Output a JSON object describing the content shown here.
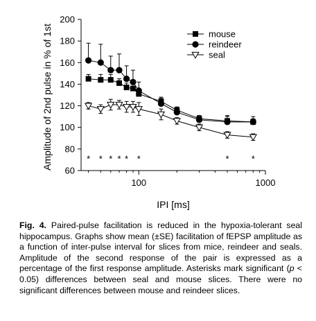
{
  "chart_data": {
    "type": "line",
    "xlabel": "IPI [ms]",
    "ylabel": "Amplitude of 2nd pulse in % of 1st",
    "x_scale": "log",
    "xlim": [
      35,
      1000
    ],
    "ylim": [
      60,
      200
    ],
    "x_ticks": [
      100,
      1000
    ],
    "x_tick_labels": [
      "100",
      "1000"
    ],
    "y_ticks": [
      60,
      80,
      100,
      120,
      140,
      160,
      180,
      200
    ],
    "y_tick_labels": [
      "60",
      "80",
      "100",
      "120",
      "140",
      "160",
      "180",
      "200"
    ],
    "grid": false,
    "legend_position": "top-right",
    "x": [
      40,
      50,
      60,
      70,
      80,
      90,
      100,
      150,
      200,
      300,
      500,
      800
    ],
    "series": [
      {
        "name": "mouse",
        "marker": "square",
        "color": "#000000",
        "values": [
          145,
          144,
          144,
          141,
          137,
          136,
          131,
          124,
          116,
          108,
          106,
          105
        ],
        "error": [
          4,
          5,
          5,
          4,
          4,
          4,
          4,
          4,
          3,
          3,
          4,
          3
        ]
      },
      {
        "name": "reindeer",
        "marker": "circle",
        "color": "#000000",
        "values": [
          162,
          160,
          153,
          153,
          145,
          142,
          134,
          122,
          114,
          107,
          105,
          105
        ],
        "error": [
          16,
          17,
          13,
          15,
          12,
          11,
          8,
          5,
          4,
          4,
          6,
          5
        ]
      },
      {
        "name": "seal",
        "marker": "triangle-down-open",
        "color": "#000000",
        "values": [
          120,
          117,
          121,
          121,
          119,
          119,
          117,
          112,
          106,
          100,
          93,
          91
        ],
        "error": [
          3,
          4,
          5,
          4,
          5,
          5,
          6,
          5,
          3,
          3,
          3,
          3
        ]
      }
    ],
    "annotations": {
      "asterisk_text": "*",
      "asterisk_y": 72,
      "asterisk_x": [
        40,
        50,
        60,
        70,
        80,
        100,
        500,
        800
      ]
    }
  },
  "caption": {
    "label": "Fig. 4.",
    "text_1": " Paired-pulse facilitation is reduced in the hypoxia-tolerant seal hippocampus. Graphs show mean (±SE) facilitation of fEPSP amplitude as a function of inter-pulse interval for slices from mice, reindeer and seals. Amplitude of the second response of the pair is expressed as a percentage of the first response amplitude. Asterisks mark significant (",
    "p_symbol": "p",
    "text_2": " < 0.05) differences between seal and mouse slices. There were no significant differences between mouse and reindeer slices."
  }
}
